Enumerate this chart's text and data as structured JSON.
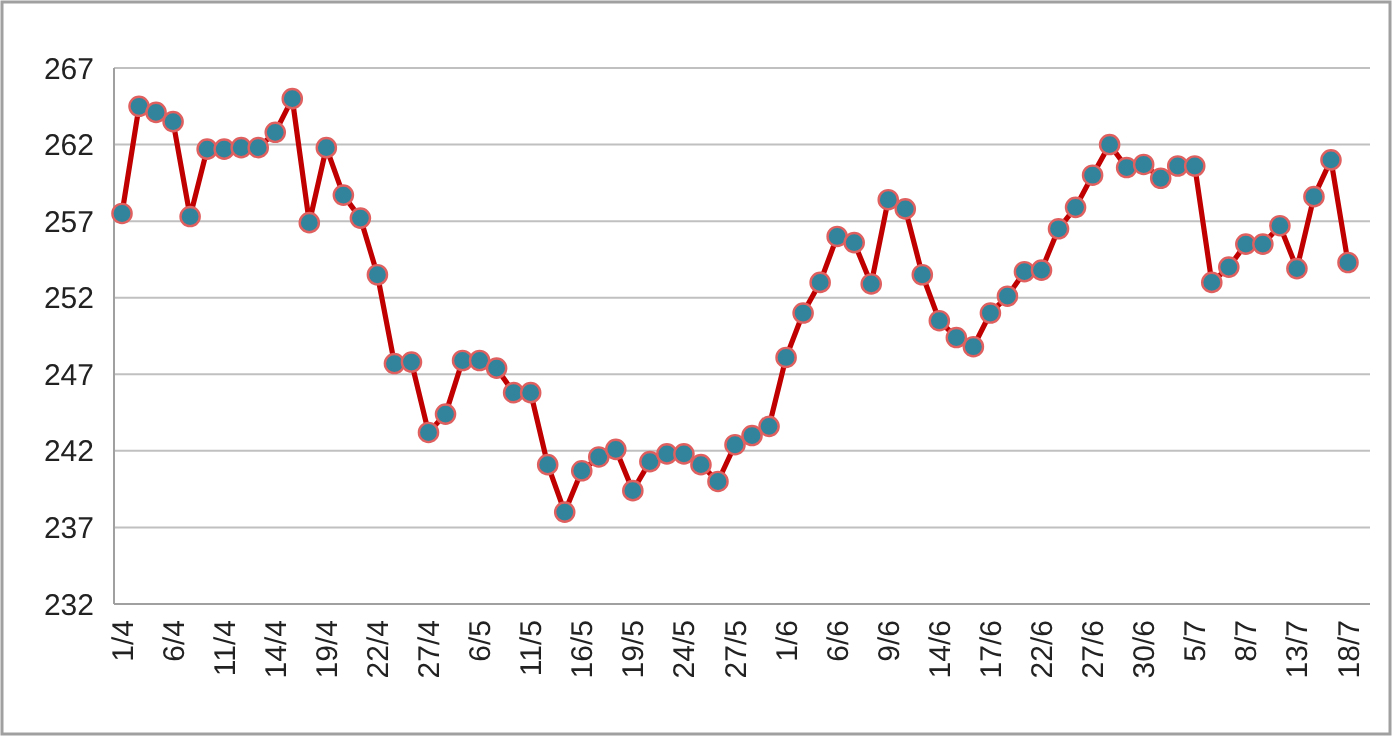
{
  "chart_data": {
    "type": "line",
    "categories": [
      "1/4",
      null,
      null,
      "6/4",
      null,
      null,
      "11/4",
      null,
      null,
      "14/4",
      null,
      null,
      "19/4",
      null,
      null,
      "22/4",
      null,
      null,
      "27/4",
      null,
      null,
      "6/5",
      null,
      null,
      "11/5",
      null,
      null,
      "16/5",
      null,
      null,
      "19/5",
      null,
      null,
      "24/5",
      null,
      null,
      "27/5",
      null,
      null,
      "1/6",
      null,
      null,
      "6/6",
      null,
      null,
      "9/6",
      null,
      null,
      "14/6",
      null,
      null,
      "17/6",
      null,
      null,
      "22/6",
      null,
      null,
      "27/6",
      null,
      null,
      "30/6",
      null,
      null,
      "5/7",
      null,
      null,
      "8/7",
      null,
      null,
      "13/7",
      null,
      null,
      "18/7"
    ],
    "series": [
      {
        "color": "#c00000",
        "values": [
          257.5,
          264.5,
          264.1,
          263.5,
          257.3,
          261.7,
          261.7,
          261.8,
          261.8,
          262.8,
          265.0,
          256.9,
          261.8,
          258.7,
          257.2,
          253.5,
          247.7,
          247.8,
          243.2,
          244.4,
          247.9,
          247.9,
          247.4,
          245.8,
          245.8,
          241.1,
          238.0,
          240.7,
          241.6,
          242.1,
          239.4,
          241.3,
          241.8,
          241.8,
          241.1,
          240.0,
          242.4,
          243.0,
          243.6,
          248.1,
          251.0,
          253.0,
          256.0,
          255.6,
          252.9,
          258.4,
          257.8,
          253.5,
          250.5,
          249.4,
          248.8,
          251.0,
          252.1,
          253.7,
          253.8,
          256.5,
          257.9,
          260.0,
          262.0,
          260.5,
          260.7,
          259.8,
          260.6,
          260.6,
          253.0,
          254.0,
          255.5,
          255.5,
          256.7,
          253.9,
          258.6,
          261.0,
          254.3
        ]
      }
    ],
    "ylim": [
      232,
      267
    ],
    "yticks": [
      232,
      237,
      242,
      247,
      252,
      257,
      262,
      267
    ],
    "grid": "y",
    "marker": "circle",
    "line_style": "solid"
  }
}
